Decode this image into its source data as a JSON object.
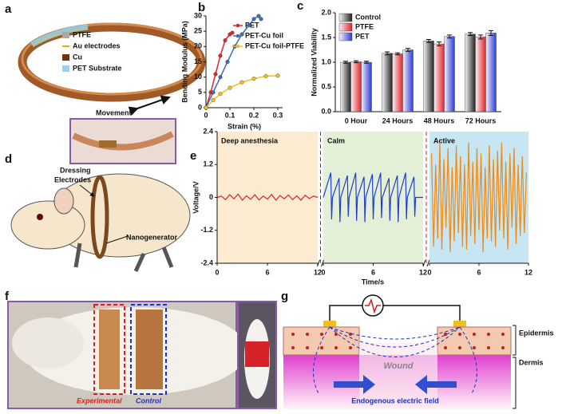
{
  "panels": {
    "a": {
      "letter": "a",
      "legend": [
        "PTFE",
        "Au electrodes",
        "Cu",
        "PET Substrate"
      ],
      "movement": "Movement"
    },
    "d": {
      "letter": "d",
      "dressing": "Dressing",
      "electrodes": "Electrodes",
      "nanogenerator": "Nanogenerator"
    },
    "f": {
      "letter": "f",
      "experimental": "Experimental",
      "control": "Control"
    },
    "g": {
      "letter": "g",
      "epidermis": "Epidermis",
      "dermis": "Dermis",
      "wound": "Wound",
      "field": "Endogenous electric field"
    }
  },
  "chart_data": [
    {
      "panel": "b",
      "type": "line",
      "xlabel": "Strain (%)",
      "ylabel": "Bending Modulus (MPa)",
      "xlim": [
        0,
        0.32
      ],
      "xticks": [
        0,
        0.1,
        0.2,
        0.3
      ],
      "ylim": [
        0,
        30
      ],
      "yticks": [
        0,
        5,
        10,
        15,
        20,
        25,
        30
      ],
      "legend": "upper right",
      "series": [
        {
          "name": "PET",
          "color": "#e0262a",
          "x": [
            0,
            0.02,
            0.04,
            0.06,
            0.08,
            0.1,
            0.11
          ],
          "values": [
            0,
            5,
            11,
            17,
            22,
            24,
            24.5
          ]
        },
        {
          "name": "PET-Cu foil",
          "color": "#3c6fb0",
          "x": [
            0,
            0.03,
            0.06,
            0.09,
            0.12,
            0.15,
            0.18,
            0.2,
            0.22,
            0.23
          ],
          "values": [
            0,
            5,
            10,
            15,
            20,
            24,
            27,
            29,
            30,
            29
          ]
        },
        {
          "name": "PET-Cu foil-PTFE",
          "color": "#f0c020",
          "x": [
            0,
            0.03,
            0.06,
            0.1,
            0.15,
            0.2,
            0.25,
            0.3
          ],
          "values": [
            0,
            2.5,
            4.5,
            6.5,
            8.3,
            9.5,
            10.3,
            10.5
          ]
        }
      ]
    },
    {
      "panel": "c",
      "type": "bar",
      "ylabel": "Normalized Viability",
      "categories": [
        "0 Hour",
        "24 Hours",
        "48 Hours",
        "72 Hours"
      ],
      "ylim": [
        0,
        2
      ],
      "yticks": [
        {
          "value": 0,
          "label": "0.0"
        },
        0.5,
        {
          "value": 1,
          "label": "1.0"
        },
        1.5,
        {
          "value": 2,
          "label": "2.0"
        }
      ],
      "legend": "upper left",
      "series": [
        {
          "name": "Control",
          "color": "#222222",
          "values": [
            1.0,
            1.18,
            1.43,
            1.57
          ],
          "errors": [
            0.02,
            0.03,
            0.03,
            0.03
          ]
        },
        {
          "name": "PTFE",
          "color": "#e8202a",
          "values": [
            1.01,
            1.17,
            1.37,
            1.51
          ],
          "errors": [
            0.02,
            0.02,
            0.04,
            0.04
          ]
        },
        {
          "name": "PET",
          "color": "#2b3bd8",
          "values": [
            1.0,
            1.25,
            1.52,
            1.59
          ],
          "errors": [
            0.02,
            0.03,
            0.03,
            0.05
          ]
        }
      ]
    },
    {
      "panel": "e",
      "type": "signal",
      "xlabel": "Time/s",
      "ylabel": "Voltage/V",
      "ylim": [
        -2.4,
        2.4
      ],
      "yticks": [
        -2.4,
        -1.2,
        0,
        1.2,
        2.4
      ],
      "series": [
        {
          "name": "Deep anesthesia",
          "color": "#e0262a",
          "background": "#fcebd0",
          "xlim": [
            0,
            12
          ],
          "xticks": [
            0,
            6,
            12
          ],
          "x": [
            0,
            0.5,
            1,
            1.5,
            2,
            2.5,
            3,
            3.5,
            4,
            4.5,
            5,
            5.5,
            6,
            6.5,
            7,
            7.5,
            8,
            8.5,
            9,
            9.5,
            10,
            10.5,
            11,
            11.5,
            12
          ],
          "values": [
            0,
            0.05,
            -0.08,
            0.1,
            -0.05,
            0.12,
            -0.1,
            0.06,
            -0.07,
            0.1,
            -0.09,
            0.05,
            -0.06,
            0.11,
            -0.1,
            0.07,
            -0.05,
            0.09,
            -0.08,
            0.06,
            -0.1,
            0.08,
            -0.04,
            0.05,
            0
          ]
        },
        {
          "name": "Calm",
          "color": "#1f3fd0",
          "background": "#e4efd8",
          "xlim": [
            0,
            12
          ],
          "xticks": [
            0,
            6,
            12
          ],
          "x": [
            0,
            0.9,
            1,
            1.1,
            1.9,
            2,
            2.1,
            2.9,
            3,
            3.1,
            3.9,
            4,
            4.1,
            4.9,
            5,
            5.1,
            5.9,
            6,
            6.1,
            6.9,
            7,
            7.1,
            7.9,
            8,
            8.1,
            8.9,
            9,
            9.1,
            9.9,
            10,
            10.1,
            10.9,
            11,
            11.1,
            12
          ],
          "values": [
            0,
            0.9,
            -0.8,
            0,
            0.7,
            -0.9,
            0,
            0.8,
            -0.7,
            0,
            0.9,
            -0.85,
            0,
            0.75,
            -0.9,
            0,
            0.85,
            -0.8,
            0,
            0.9,
            -0.75,
            0,
            0.7,
            -0.85,
            0,
            0.8,
            -0.9,
            0,
            0.9,
            -0.8,
            0,
            0.75,
            -0.7,
            0,
            0
          ]
        },
        {
          "name": "Active",
          "color": "#f08a10",
          "background": "#c7e6f3",
          "xlim": [
            0,
            12
          ],
          "xticks": [
            0,
            6,
            12
          ],
          "x": [
            0.25,
            0.5,
            0.75,
            1,
            1.25,
            1.5,
            1.75,
            2,
            2.25,
            2.5,
            2.75,
            3,
            3.25,
            3.5,
            3.75,
            4,
            4.25,
            4.5,
            4.75,
            5,
            5.25,
            5.5,
            5.75,
            6,
            6.25,
            6.5,
            6.75,
            7,
            7.25,
            7.5,
            7.75,
            8,
            8.25,
            8.5,
            8.75,
            9,
            9.25,
            9.5,
            9.75,
            10,
            10.25,
            10.5,
            10.75,
            11,
            11.25,
            11.5,
            11.75
          ],
          "values": [
            1.6,
            -1.8,
            1.2,
            -1.5,
            2.0,
            -1.9,
            1.4,
            -1.1,
            1.8,
            -2.0,
            1.1,
            -1.6,
            1.9,
            -1.3,
            1.5,
            -1.8,
            1.2,
            -1.9,
            2.0,
            -1.4,
            1.3,
            -1.7,
            1.8,
            -1.2,
            1.6,
            -2.0,
            1.1,
            -1.5,
            1.9,
            -1.6,
            1.4,
            -1.8,
            1.7,
            -1.2,
            2.0,
            -1.5,
            1.3,
            -1.9,
            1.6,
            -1.1,
            1.8,
            -1.7,
            1.2,
            -1.4,
            1.5,
            -1.3,
            0.9
          ]
        }
      ]
    }
  ]
}
